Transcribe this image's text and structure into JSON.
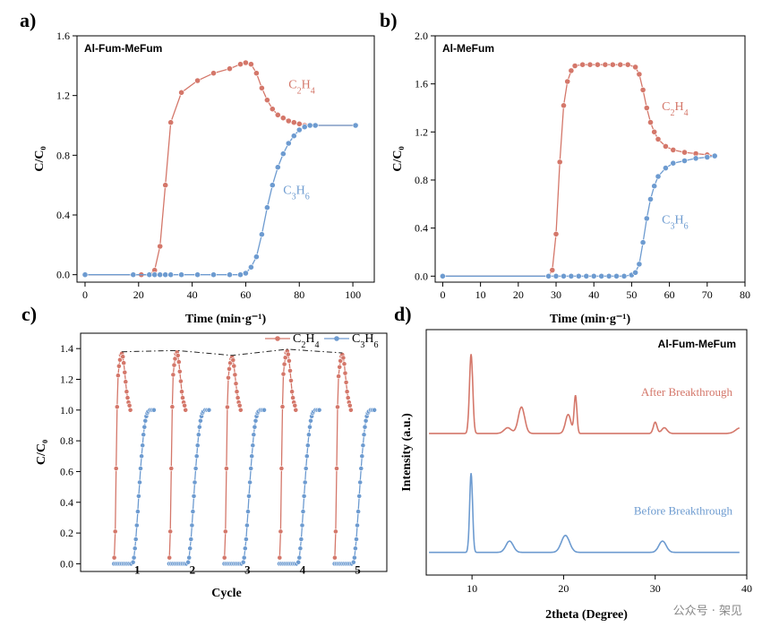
{
  "colors": {
    "c2h4": "#d4776a",
    "c3h6": "#6d9bd0",
    "axis": "#000000"
  },
  "watermark": "公众号 · 架见",
  "chart_data": [
    {
      "id": "a",
      "letter": "a)",
      "type": "line",
      "panel_label": "Al-Fum-MeFum",
      "xlabel": "Time (min·g⁻¹)",
      "ylabel": "C/C₀",
      "xlim": [
        -3,
        108
      ],
      "ylim": [
        -0.05,
        1.6
      ],
      "xticks": [
        0,
        20,
        40,
        60,
        80,
        100
      ],
      "yticks": [
        0.0,
        0.4,
        0.8,
        1.2,
        1.6
      ],
      "series": [
        {
          "name": "C2H4",
          "label_pos": [
            76,
            1.25
          ],
          "x": [
            0,
            18,
            21,
            24,
            26,
            28,
            30,
            32,
            36,
            42,
            48,
            54,
            58,
            60,
            62,
            64,
            66,
            68,
            70,
            72,
            74,
            76,
            78,
            80,
            82,
            84,
            86,
            101
          ],
          "y": [
            0,
            0,
            0,
            0,
            0.03,
            0.19,
            0.6,
            1.02,
            1.22,
            1.3,
            1.35,
            1.38,
            1.41,
            1.42,
            1.41,
            1.35,
            1.25,
            1.17,
            1.11,
            1.07,
            1.05,
            1.03,
            1.02,
            1.01,
            1.0,
            1.0,
            1.0,
            1.0
          ]
        },
        {
          "name": "C3H6",
          "label_pos": [
            74,
            0.54
          ],
          "x": [
            0,
            18,
            24,
            26,
            28,
            30,
            32,
            36,
            42,
            48,
            54,
            58,
            60,
            62,
            64,
            66,
            68,
            70,
            72,
            74,
            76,
            78,
            80,
            82,
            84,
            86,
            101
          ],
          "y": [
            0,
            0,
            0,
            0,
            0,
            0,
            0,
            0,
            0,
            0,
            0,
            0,
            0.01,
            0.05,
            0.12,
            0.27,
            0.45,
            0.6,
            0.72,
            0.81,
            0.88,
            0.93,
            0.97,
            0.99,
            1.0,
            1.0,
            1.0
          ]
        }
      ]
    },
    {
      "id": "b",
      "letter": "b)",
      "type": "line",
      "panel_label": "Al-MeFum",
      "xlabel": "Time (min·g⁻¹)",
      "ylabel": "C/C₀",
      "xlim": [
        -2,
        80
      ],
      "ylim": [
        -0.05,
        2.0
      ],
      "xticks": [
        0,
        10,
        20,
        30,
        40,
        50,
        60,
        70,
        80
      ],
      "yticks": [
        0.0,
        0.4,
        0.8,
        1.2,
        1.6,
        2.0
      ],
      "series": [
        {
          "name": "C2H4",
          "label_pos": [
            58,
            1.38
          ],
          "x": [
            0,
            28,
            29,
            30,
            31,
            32,
            33,
            34,
            35,
            37,
            39,
            41,
            43,
            45,
            47,
            49,
            51,
            52,
            53,
            54,
            55,
            56,
            57,
            59,
            61,
            64,
            67,
            70,
            72
          ],
          "y": [
            0,
            0,
            0.05,
            0.35,
            0.95,
            1.42,
            1.62,
            1.71,
            1.75,
            1.76,
            1.76,
            1.76,
            1.76,
            1.76,
            1.76,
            1.76,
            1.74,
            1.68,
            1.55,
            1.4,
            1.28,
            1.2,
            1.14,
            1.08,
            1.05,
            1.03,
            1.02,
            1.01,
            1.0
          ]
        },
        {
          "name": "C3H6",
          "label_pos": [
            58,
            0.44
          ],
          "x": [
            0,
            28,
            30,
            32,
            34,
            36,
            38,
            40,
            42,
            44,
            46,
            48,
            50,
            51,
            52,
            53,
            54,
            55,
            56,
            57,
            59,
            61,
            64,
            67,
            70,
            72
          ],
          "y": [
            0,
            0,
            0,
            0,
            0,
            0,
            0,
            0,
            0,
            0,
            0,
            0,
            0.01,
            0.03,
            0.1,
            0.28,
            0.48,
            0.64,
            0.75,
            0.83,
            0.9,
            0.94,
            0.96,
            0.98,
            0.99,
            1.0
          ]
        }
      ]
    },
    {
      "id": "c",
      "letter": "c)",
      "type": "line",
      "xlabel": "Cycle",
      "ylabel": "C/C₀",
      "xlim": [
        0,
        100
      ],
      "ylim": [
        -0.05,
        1.5
      ],
      "yticks": [
        0.0,
        0.2,
        0.4,
        0.6,
        0.8,
        1.0,
        1.2,
        1.4
      ],
      "cycle_labels": [
        "1",
        "2",
        "3",
        "4",
        "5"
      ],
      "legend": [
        "C2H4",
        "C3H6"
      ],
      "legend_position": "top-right",
      "peaks": [
        1.37,
        1.38,
        1.34,
        1.39,
        1.36
      ],
      "c2h4_profile": {
        "dx": [
          0,
          0.5,
          1,
          1.5,
          2,
          2.5,
          3,
          3.5,
          4,
          4.5,
          5,
          5.5,
          6,
          6.5,
          7,
          7.5,
          8,
          8.5
        ],
        "dy": [
          0.04,
          0.21,
          0.62,
          1.02,
          1.22,
          1.28,
          1.32,
          1.35,
          1.36,
          1.34,
          1.3,
          1.24,
          1.18,
          1.12,
          1.08,
          1.05,
          1.03,
          1.0
        ]
      },
      "c3h6_profile": {
        "dx": [
          -9,
          -8,
          -7,
          -6,
          -5,
          -4,
          -3,
          -2,
          -1,
          0,
          1,
          1.5,
          2,
          2.5,
          3,
          3.5,
          4,
          4.5,
          5,
          5.5,
          6,
          6.5,
          7,
          7.5,
          8,
          8.5,
          9,
          10,
          11,
          12
        ],
        "dy": [
          0,
          0,
          0,
          0,
          0,
          0,
          0,
          0,
          0,
          0,
          0.01,
          0.04,
          0.1,
          0.16,
          0.25,
          0.34,
          0.44,
          0.53,
          0.62,
          0.7,
          0.77,
          0.84,
          0.89,
          0.93,
          0.96,
          0.98,
          0.99,
          1.0,
          1.0,
          1.0
        ]
      },
      "cycle_starts": [
        11,
        29,
        47,
        65,
        83
      ]
    },
    {
      "id": "d",
      "letter": "d)",
      "type": "line",
      "panel_label": "Al-Fum-MeFum",
      "xlabel": "2theta (Degree)",
      "ylabel": "Intensity (a.u.)",
      "xlim": [
        5,
        40
      ],
      "xticks": [
        10,
        20,
        30,
        40
      ],
      "series": [
        {
          "name": "After Breakthrough",
          "offset": 0.63,
          "baseline": 0.0,
          "peaks": [
            [
              9.9,
              0.42,
              0.18
            ],
            [
              13.9,
              0.03,
              0.4
            ],
            [
              15.4,
              0.14,
              0.35
            ],
            [
              20.5,
              0.1,
              0.3
            ],
            [
              21.3,
              0.2,
              0.15
            ],
            [
              30.0,
              0.06,
              0.2
            ],
            [
              31.0,
              0.03,
              0.3
            ],
            [
              39.3,
              0.03,
              0.5
            ]
          ]
        },
        {
          "name": "Before Breakthrough",
          "offset": 0.0,
          "baseline": 0.0,
          "peaks": [
            [
              9.9,
              0.42,
              0.16
            ],
            [
              14.1,
              0.06,
              0.4
            ],
            [
              20.2,
              0.09,
              0.45
            ],
            [
              30.8,
              0.06,
              0.4
            ]
          ]
        }
      ]
    }
  ]
}
